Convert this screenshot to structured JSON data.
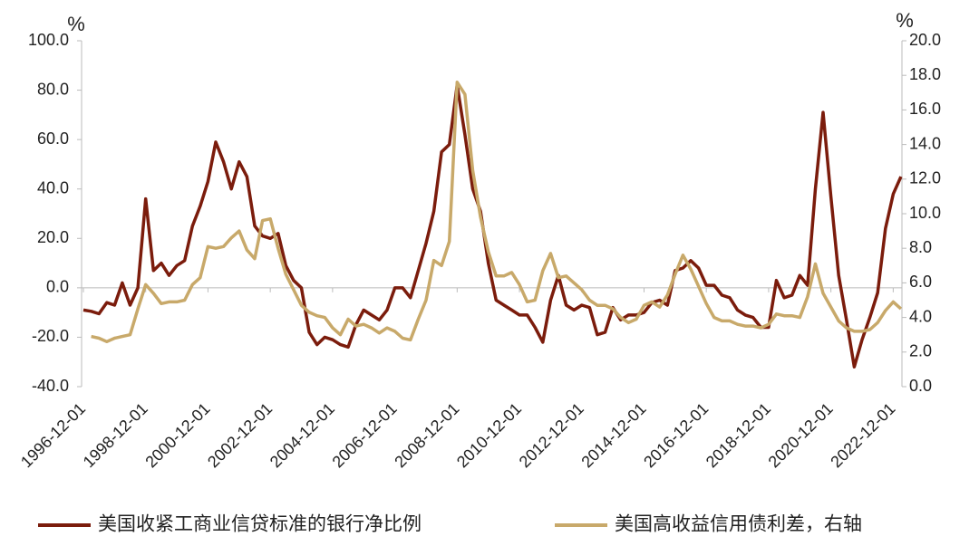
{
  "chart_data": {
    "type": "line",
    "y_unit": "%",
    "y2_unit": "%",
    "categories": [
      "1996-12-01",
      null,
      null,
      null,
      null,
      null,
      null,
      null,
      "1998-12-01",
      null,
      null,
      null,
      null,
      null,
      null,
      null,
      "2000-12-01",
      null,
      null,
      null,
      null,
      null,
      null,
      null,
      "2002-12-01",
      null,
      null,
      null,
      null,
      null,
      null,
      null,
      "2004-12-01",
      null,
      null,
      null,
      null,
      null,
      null,
      null,
      "2006-12-01",
      null,
      null,
      null,
      null,
      null,
      null,
      null,
      "2008-12-01",
      null,
      null,
      null,
      null,
      null,
      null,
      null,
      "2010-12-01",
      null,
      null,
      null,
      null,
      null,
      null,
      null,
      "2012-12-01",
      null,
      null,
      null,
      null,
      null,
      null,
      null,
      "2014-12-01",
      null,
      null,
      null,
      null,
      null,
      null,
      null,
      "2016-12-01",
      null,
      null,
      null,
      null,
      null,
      null,
      null,
      "2018-12-01",
      null,
      null,
      null,
      null,
      null,
      null,
      null,
      "2020-12-01",
      null,
      null,
      null,
      null,
      null,
      null,
      null,
      "2022-12-01",
      null
    ],
    "series": [
      {
        "name": "美国收紧工商业信贷标准的银行净比例",
        "color": "#7b1c0c",
        "axis": "y",
        "values": [
          -9,
          -9.5,
          -10.5,
          -6,
          -7,
          2,
          -7,
          0,
          36,
          7,
          10,
          5,
          9,
          11,
          25,
          33,
          43,
          59,
          51,
          40,
          51,
          45,
          25,
          21,
          20,
          22,
          9,
          3,
          0,
          -18,
          -23,
          -20,
          -21,
          -23,
          -24,
          -15,
          -9,
          -11,
          -13,
          -9,
          0,
          0,
          -4,
          7,
          18,
          31,
          55,
          58,
          82,
          62,
          40,
          31,
          10,
          -5,
          -7,
          -9,
          -11,
          -11,
          -16,
          -22,
          -5,
          5,
          -7,
          -9,
          -7,
          -8,
          -19,
          -18,
          -8,
          -13,
          -11,
          -11,
          -10,
          -6,
          -5,
          -7,
          7,
          8,
          11,
          8,
          1,
          1,
          -3,
          -4,
          -9,
          -11,
          -12,
          -16,
          -16,
          3,
          -4,
          -3,
          5,
          1,
          40,
          71,
          37,
          5,
          -13,
          -32,
          -21,
          -12,
          -2,
          24,
          38,
          45
        ]
      },
      {
        "name": "美国高收益信用债利差，右轴",
        "color": "#c8a96a",
        "axis": "y2",
        "values": [
          null,
          2.9,
          2.8,
          2.6,
          2.8,
          2.9,
          3.0,
          4.5,
          5.9,
          5.4,
          4.8,
          4.9,
          4.9,
          5.0,
          5.9,
          6.3,
          8.1,
          8.0,
          8.1,
          8.6,
          9.0,
          7.9,
          7.4,
          9.6,
          9.7,
          8.0,
          6.5,
          5.6,
          4.7,
          4.3,
          4.1,
          4.0,
          3.4,
          3.0,
          3.9,
          3.5,
          3.6,
          3.4,
          3.1,
          3.4,
          3.2,
          2.8,
          2.7,
          3.9,
          5.0,
          7.3,
          7.0,
          8.4,
          17.6,
          16.9,
          12.5,
          9.8,
          7.8,
          6.4,
          6.4,
          6.6,
          5.9,
          4.9,
          5.0,
          6.7,
          7.7,
          6.3,
          6.4,
          6.0,
          5.6,
          5.0,
          4.7,
          4.7,
          4.5,
          4.0,
          3.7,
          3.9,
          4.7,
          4.9,
          4.6,
          5.3,
          6.5,
          7.6,
          6.8,
          5.8,
          4.8,
          4.0,
          3.8,
          3.8,
          3.6,
          3.5,
          3.5,
          3.4,
          3.6,
          4.2,
          4.1,
          4.1,
          4.0,
          5.2,
          7.1,
          5.4,
          4.6,
          3.8,
          3.4,
          3.2,
          3.2,
          3.3,
          3.7,
          4.4,
          4.9,
          4.5
        ]
      }
    ],
    "ylim": [
      -40,
      100
    ],
    "yticks": [
      {
        "value": -40,
        "label": "-40.0"
      },
      {
        "value": -20,
        "label": "-20.0"
      },
      {
        "value": 0,
        "label": "0.0"
      },
      {
        "value": 20,
        "label": "20.0"
      },
      {
        "value": 40,
        "label": "40.0"
      },
      {
        "value": 60,
        "label": "60.0"
      },
      {
        "value": 80,
        "label": "80.0"
      },
      {
        "value": 100,
        "label": "100.0"
      }
    ],
    "y2lim": [
      0,
      20
    ],
    "y2ticks": [
      {
        "value": 0,
        "label": "0.0"
      },
      {
        "value": 2,
        "label": "2.0"
      },
      {
        "value": 4,
        "label": "4.0"
      },
      {
        "value": 6,
        "label": "6.0"
      },
      {
        "value": 8,
        "label": "8.0"
      },
      {
        "value": 10,
        "label": "10.0"
      },
      {
        "value": 12,
        "label": "12.0"
      },
      {
        "value": 14,
        "label": "14.0"
      },
      {
        "value": 16,
        "label": "16.0"
      },
      {
        "value": 18,
        "label": "18.0"
      },
      {
        "value": 20,
        "label": "20.0"
      }
    ],
    "legend": "bottom"
  }
}
